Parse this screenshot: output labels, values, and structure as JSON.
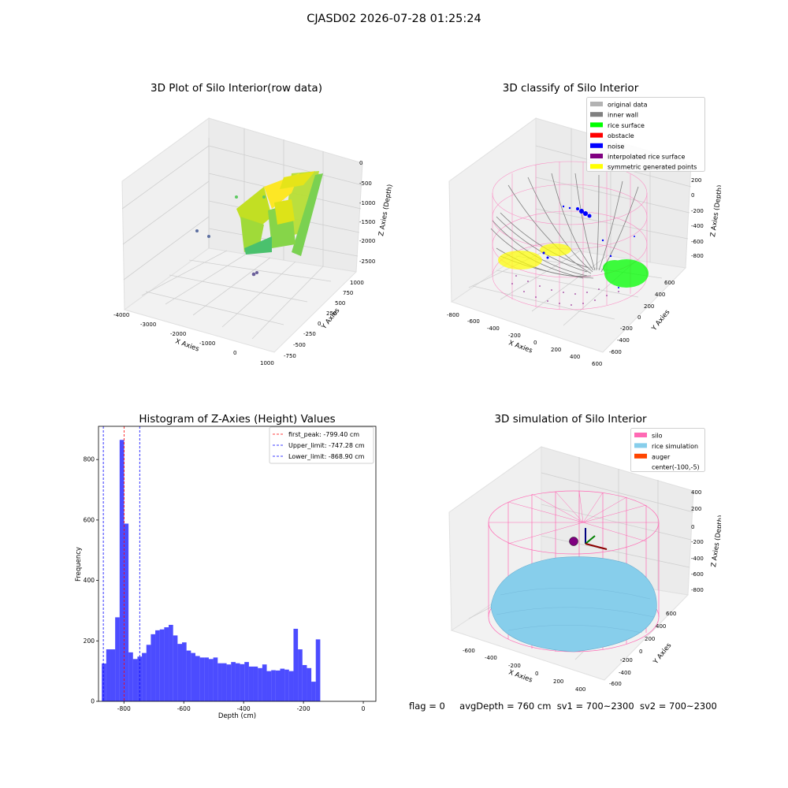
{
  "figure_title": "CJASD02 2026-07-28 01:25:24",
  "chart_data": [
    {
      "type": "scatter3d",
      "title": "3D Plot of Silo Interior(row data)",
      "xlabel": "X Axies",
      "ylabel": "Y Axies",
      "zlabel": "Z Axies (Depth)",
      "x_ticks": [
        "-4000",
        "-3000",
        "-2000",
        "-1000",
        "0",
        "1000"
      ],
      "y_ticks": [
        "-750",
        "-500",
        "-250",
        "0",
        "250",
        "500",
        "750",
        "1000"
      ],
      "z_ticks": [
        "0",
        "-500",
        "-1000",
        "-1500",
        "-2000",
        "-2500"
      ],
      "xlim": [
        -4000,
        1000
      ],
      "ylim": [
        -750,
        1000
      ],
      "zlim": [
        -2700,
        0
      ],
      "colormap": "viridis",
      "grid": true
    },
    {
      "type": "scatter3d",
      "title": "3D classify of Silo Interior",
      "xlabel": "X Axies",
      "ylabel": "Y Axies",
      "zlabel": "Z Axies (Depth)",
      "x_ticks": [
        "-800",
        "-600",
        "-400",
        "-200",
        "0",
        "200",
        "400",
        "600"
      ],
      "y_ticks": [
        "-600",
        "-400",
        "-200",
        "0",
        "200",
        "400",
        "600"
      ],
      "z_ticks": [
        "200",
        "0",
        "-200",
        "-400",
        "-600",
        "-800"
      ],
      "legend_position": "top-right",
      "legend": [
        {
          "label": "original data",
          "color": "#b3b3b3"
        },
        {
          "label": "inner wall",
          "color": "#808080"
        },
        {
          "label": "rice surface",
          "color": "#00ff00"
        },
        {
          "label": "obstacle",
          "color": "#ff0000"
        },
        {
          "label": "noise",
          "color": "#0000ff"
        },
        {
          "label": "interpolated rice surface",
          "color": "#800080"
        },
        {
          "label": "symmetric generated points",
          "color": "#ffff00"
        }
      ],
      "grid": true
    },
    {
      "type": "bar",
      "title": "Histogram of Z-Axies (Height) Values",
      "xlabel": "Depth (cm)",
      "ylabel": "Frequency",
      "xlim": [
        -885,
        42
      ],
      "ylim": [
        0,
        910
      ],
      "x_ticks": [
        "-800",
        "-600",
        "-400",
        "-200",
        "0"
      ],
      "x_tick_values": [
        -800,
        -600,
        -400,
        -200,
        0
      ],
      "y_ticks": [
        "0",
        "200",
        "400",
        "600",
        "800"
      ],
      "y_tick_values": [
        0,
        200,
        400,
        600,
        800
      ],
      "bar_color": "#0000ff",
      "bin_start": -874,
      "bin_width": 14.9,
      "values": [
        125,
        172,
        172,
        278,
        865,
        588,
        162,
        140,
        148,
        160,
        187,
        222,
        235,
        238,
        245,
        253,
        218,
        190,
        195,
        168,
        160,
        150,
        145,
        145,
        140,
        145,
        126,
        126,
        122,
        130,
        126,
        123,
        130,
        115,
        115,
        110,
        122,
        100,
        103,
        102,
        108,
        105,
        100,
        240,
        172,
        120,
        110,
        65,
        205
      ],
      "lines": [
        {
          "label": "first_peak: -799.40 cm",
          "x": -799.4,
          "color": "#ff0000"
        },
        {
          "label": "Upper_limit: -747.28 cm",
          "x": -747.28,
          "color": "#0000ff"
        },
        {
          "label": "Lower_limit: -868.90 cm",
          "x": -868.9,
          "color": "#0000ff"
        }
      ],
      "legend_position": "top-right"
    },
    {
      "type": "surface3d",
      "title": "3D simulation of Silo Interior",
      "xlabel": "X Axies",
      "ylabel": "Y Axies",
      "zlabel": "Z Axies (Depth)",
      "x_ticks": [
        "-600",
        "-400",
        "-200",
        "0",
        "200",
        "400"
      ],
      "y_ticks": [
        "-600",
        "-400",
        "-200",
        "0",
        "200",
        "400",
        "600"
      ],
      "z_ticks": [
        "400",
        "200",
        "0",
        "-200",
        "-400",
        "-600",
        "-800"
      ],
      "legend_position": "top-right",
      "legend": [
        {
          "label": "silo",
          "color": "#ff69b4"
        },
        {
          "label": "rice simulation",
          "color": "#87ceeb"
        },
        {
          "label": "auger",
          "color": "#ff4500"
        },
        {
          "label": "center(-100,-5)",
          "color": ""
        }
      ],
      "grid": true
    }
  ],
  "status": {
    "flag": "flag = 0",
    "avg_depth": "avgDepth = 760 cm",
    "sv1": "sv1 = 700~2300",
    "sv2": "sv2 = 700~2300"
  }
}
